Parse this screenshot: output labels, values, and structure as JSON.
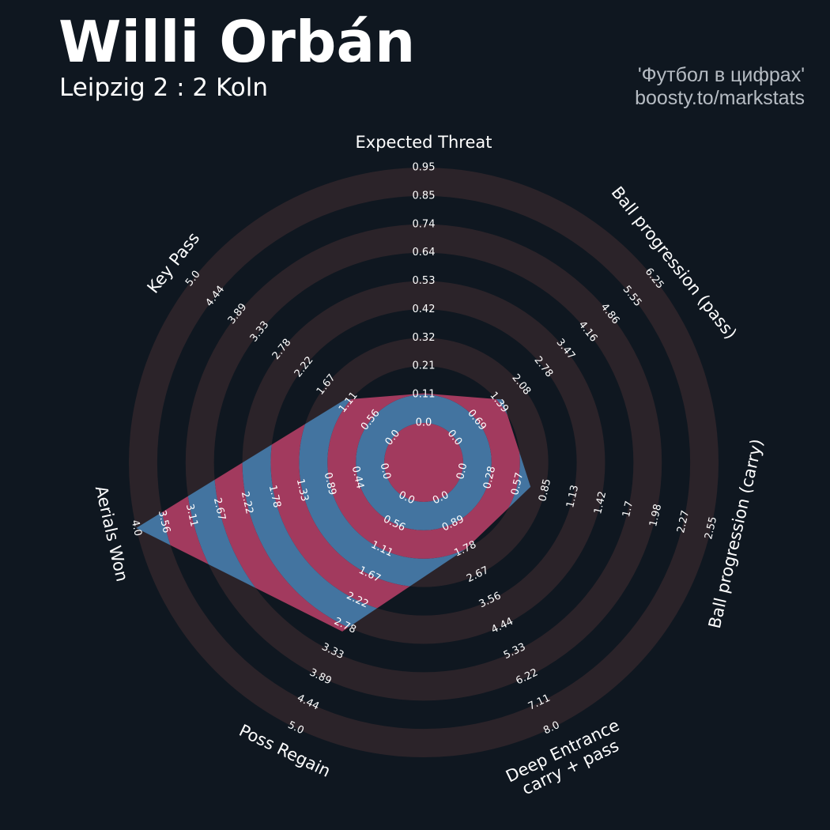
{
  "header": {
    "player_name": "Willi Orbán",
    "match": "Leipzig 2 : 2 Koln",
    "credit_line1": "'Футбол в цифрах'",
    "credit_line2": "boosty.to/markstats"
  },
  "colors": {
    "background": "#0f1720",
    "ring_dark": "#2b2329",
    "fill_blue": "#4374a0",
    "fill_red": "#a23a5e",
    "text": "#ffffff"
  },
  "chart_data": {
    "type": "radar",
    "params": [
      {
        "label": "Expected Threat",
        "lines": [
          "Expected Threat"
        ],
        "ticks": [
          "0.0",
          "0.11",
          "0.21",
          "0.32",
          "0.42",
          "0.53",
          "0.64",
          "0.74",
          "0.85",
          "0.95"
        ],
        "min": 0.0,
        "max": 0.95,
        "value": 0.11
      },
      {
        "label": "Ball progression (pass)",
        "lines": [
          "Ball progression (pass)"
        ],
        "ticks": [
          "0.0",
          "0.69",
          "1.39",
          "2.08",
          "2.78",
          "3.47",
          "4.16",
          "4.86",
          "5.55",
          "6.25"
        ],
        "min": 0.0,
        "max": 6.25,
        "value": 1.5
      },
      {
        "label": "Ball progression (carry)",
        "lines": [
          "Ball progression (carry)"
        ],
        "ticks": [
          "0.0",
          "0.28",
          "0.57",
          "0.85",
          "1.13",
          "1.42",
          "1.7",
          "1.98",
          "2.27",
          "2.55"
        ],
        "min": 0.0,
        "max": 2.55,
        "value": 0.7
      },
      {
        "label": "Deep Entrance carry + pass",
        "lines": [
          "Deep Entrance",
          "carry + pass"
        ],
        "ticks": [
          "0.0",
          "0.89",
          "1.78",
          "2.67",
          "3.56",
          "4.44",
          "5.33",
          "6.22",
          "7.11",
          "8.0"
        ],
        "min": 0.0,
        "max": 8.0,
        "value": 1.78
      },
      {
        "label": "Poss Regain",
        "lines": [
          "Poss Regain"
        ],
        "ticks": [
          "0.0",
          "0.56",
          "1.11",
          "1.67",
          "2.22",
          "2.78",
          "3.33",
          "3.89",
          "4.44",
          "5.0"
        ],
        "min": 0.0,
        "max": 5.0,
        "value": 2.9
      },
      {
        "label": "Aerials Won",
        "lines": [
          "Aerials Won"
        ],
        "ticks": [
          "0.0",
          "0.44",
          "0.89",
          "1.33",
          "1.78",
          "2.22",
          "2.67",
          "3.11",
          "3.56",
          "4.0"
        ],
        "min": 0.0,
        "max": 4.0,
        "value": 4.0
      },
      {
        "label": "Key Pass",
        "lines": [
          "Key Pass"
        ],
        "ticks": [
          "0.0",
          "0.56",
          "1.11",
          "1.67",
          "2.22",
          "2.78",
          "3.33",
          "3.89",
          "4.44",
          "5.0"
        ],
        "min": 0.0,
        "max": 5.0,
        "value": 1.2
      }
    ]
  }
}
